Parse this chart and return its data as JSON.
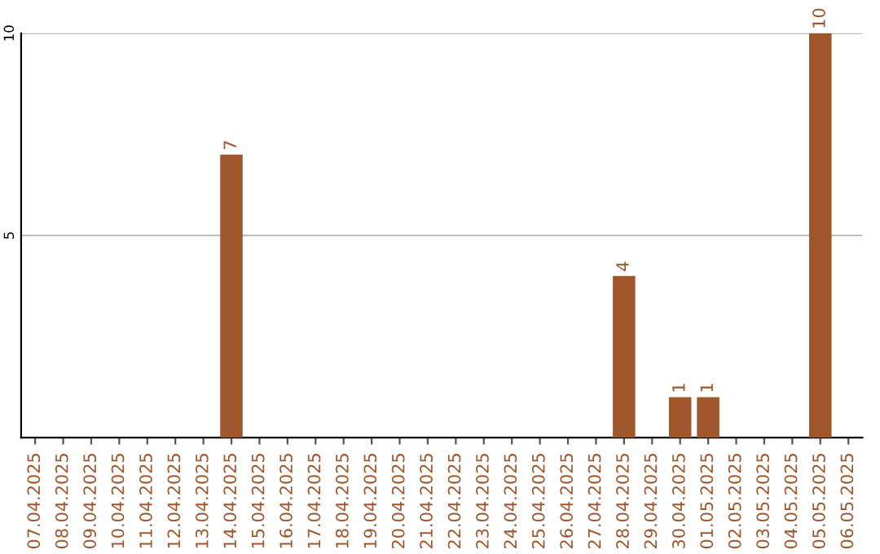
{
  "chart_data": {
    "type": "bar",
    "categories": [
      "07.04.2025",
      "08.04.2025",
      "09.04.2025",
      "10.04.2025",
      "11.04.2025",
      "12.04.2025",
      "13.04.2025",
      "14.04.2025",
      "15.04.2025",
      "16.04.2025",
      "17.04.2025",
      "18.04.2025",
      "19.04.2025",
      "20.04.2025",
      "21.04.2025",
      "22.04.2025",
      "23.04.2025",
      "24.04.2025",
      "25.04.2025",
      "26.04.2025",
      "27.04.2025",
      "28.04.2025",
      "29.04.2025",
      "30.04.2025",
      "01.05.2025",
      "02.05.2025",
      "03.05.2025",
      "04.05.2025",
      "05.05.2025",
      "06.05.2025"
    ],
    "values": [
      0,
      0,
      0,
      0,
      0,
      0,
      0,
      7,
      0,
      0,
      0,
      0,
      0,
      0,
      0,
      0,
      0,
      0,
      0,
      0,
      0,
      4,
      0,
      1,
      1,
      0,
      0,
      0,
      10,
      0
    ],
    "value_labels": [
      null,
      null,
      null,
      null,
      null,
      null,
      null,
      "7",
      null,
      null,
      null,
      null,
      null,
      null,
      null,
      null,
      null,
      null,
      null,
      null,
      null,
      "4",
      null,
      "1",
      "1",
      null,
      null,
      null,
      "10",
      null
    ],
    "color": "#a0562a",
    "ylim": [
      0,
      10
    ],
    "yticks": [
      5,
      10
    ],
    "grid": "y",
    "legend": false
  }
}
